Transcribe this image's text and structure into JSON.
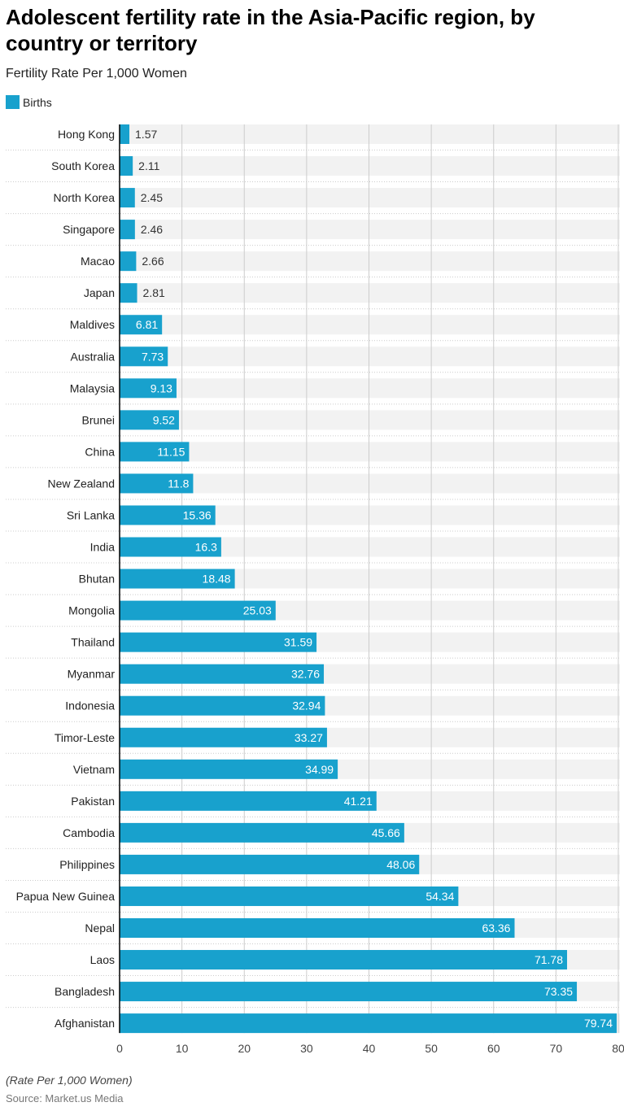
{
  "chart_data": {
    "type": "bar",
    "orientation": "horizontal",
    "title": "Adolescent fertility rate in the Asia-Pacific region, by country or territory",
    "subtitle": "Fertility Rate Per 1,000 Women",
    "legend": [
      "Births"
    ],
    "legend_placement": "top-left",
    "categories": [
      "Hong Kong",
      "South Korea",
      "North Korea",
      "Singapore",
      "Macao",
      "Japan",
      "Maldives",
      "Australia",
      "Malaysia",
      "Brunei",
      "China",
      "New Zealand",
      "Sri Lanka",
      "India",
      "Bhutan",
      "Mongolia",
      "Thailand",
      "Myanmar",
      "Indonesia",
      "Timor-Leste",
      "Vietnam",
      "Pakistan",
      "Cambodia",
      "Philippines",
      "Papua New Guinea",
      "Nepal",
      "Laos",
      "Bangladesh",
      "Afghanistan"
    ],
    "series": [
      {
        "name": "Births",
        "values": [
          1.57,
          2.11,
          2.45,
          2.46,
          2.66,
          2.81,
          6.81,
          7.73,
          9.13,
          9.52,
          11.15,
          11.8,
          15.36,
          16.3,
          18.48,
          25.03,
          31.59,
          32.76,
          32.94,
          33.27,
          34.99,
          41.21,
          45.66,
          48.06,
          54.34,
          63.36,
          71.78,
          73.35,
          79.74
        ]
      }
    ],
    "value_labels": [
      "1.57",
      "2.11",
      "2.45",
      "2.46",
      "2.66",
      "2.81",
      "6.81",
      "7.73",
      "9.13",
      "9.52",
      "11.15",
      "11.8",
      "15.36",
      "16.3",
      "18.48",
      "25.03",
      "31.59",
      "32.76",
      "32.94",
      "33.27",
      "34.99",
      "41.21",
      "45.66",
      "48.06",
      "54.34",
      "63.36",
      "71.78",
      "73.35",
      "79.74"
    ],
    "xlim": [
      0,
      80
    ],
    "xticks": [
      "0",
      "10",
      "20",
      "30",
      "40",
      "50",
      "60",
      "70",
      "80"
    ],
    "grid": true,
    "colors": {
      "bar": "#18a1cd",
      "band": "#f2f2f2",
      "grid": "#cccccc"
    },
    "note": "(Rate Per 1,000 Women)",
    "source": "Source: Market.us Media"
  }
}
